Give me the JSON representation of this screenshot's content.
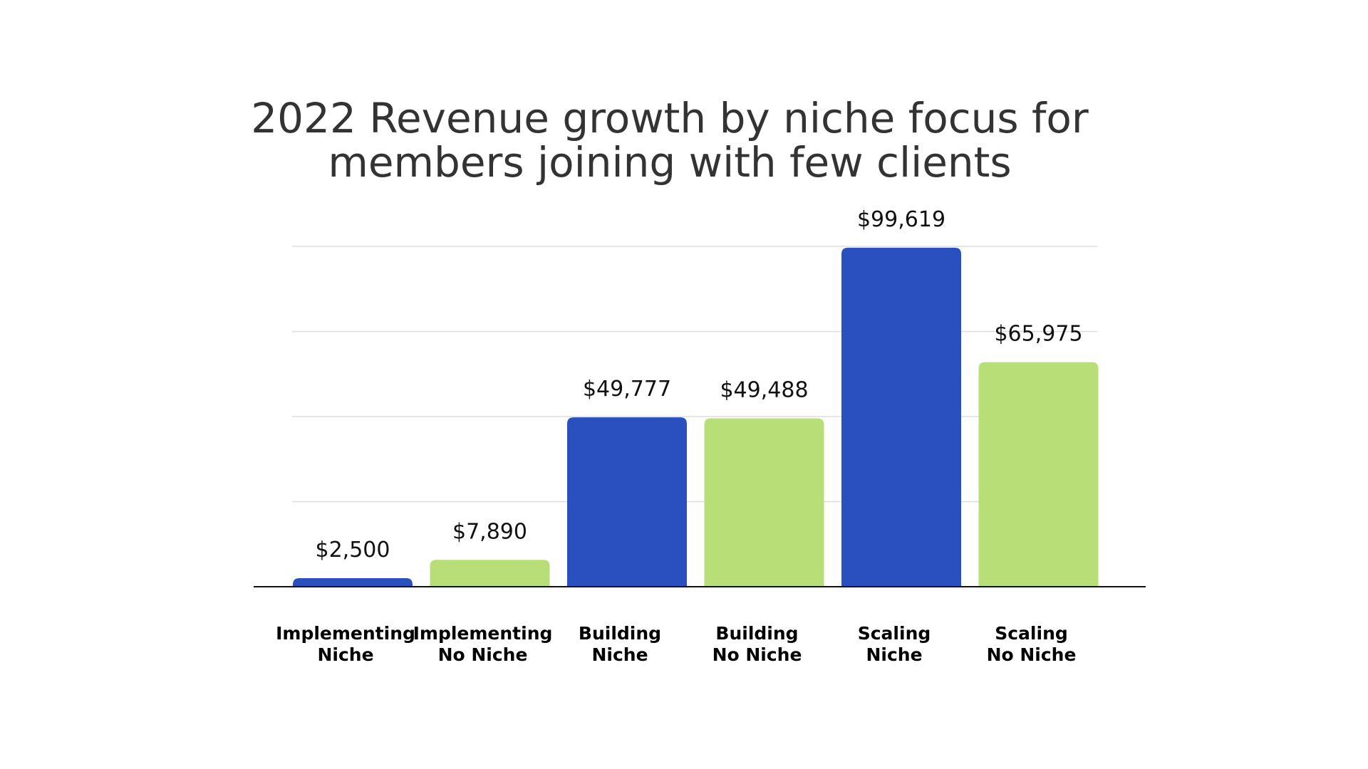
{
  "chart_data": {
    "type": "bar",
    "title_lines": [
      "2022 Revenue growth by niche focus for",
      "members joining with few clients"
    ],
    "categories": [
      [
        "Implementing",
        "Niche"
      ],
      [
        "Implementing",
        "No Niche"
      ],
      [
        "Building",
        "Niche"
      ],
      [
        "Building",
        "No Niche"
      ],
      [
        "Scaling",
        "Niche"
      ],
      [
        "Scaling",
        "No Niche"
      ]
    ],
    "values": [
      2500,
      7890,
      49777,
      49488,
      99619,
      65975
    ],
    "value_labels": [
      "$2,500",
      "$7,890",
      "$49,777",
      "$49,488",
      "$99,619",
      "$65,975"
    ],
    "bar_colors": [
      "#2a50c0",
      "#b8de78",
      "#2a50c0",
      "#b8de78",
      "#2a50c0",
      "#b8de78"
    ],
    "ylim": [
      0,
      100000
    ],
    "gridlines": true,
    "xlabel": "",
    "ylabel": ""
  }
}
